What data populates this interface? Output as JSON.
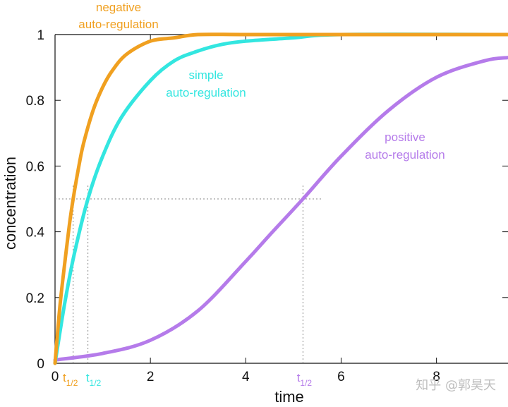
{
  "chart_data": {
    "type": "line",
    "xlabel": "time",
    "ylabel": "concentration",
    "xlim": [
      0,
      9.5
    ],
    "ylim": [
      0,
      1
    ],
    "x_ticks": [
      "0",
      "2",
      "4",
      "6",
      "8"
    ],
    "y_ticks": [
      "0",
      "0.2",
      "0.4",
      "0.6",
      "0.8",
      "1"
    ],
    "grid": false,
    "series": [
      {
        "name": "negative auto-regulation",
        "label_line1": "negative",
        "label_line2": "auto-regulation",
        "color": "#f0a020",
        "half_time": 0.38,
        "x": [
          0,
          0.1,
          0.2,
          0.3,
          0.38,
          0.5,
          0.6,
          0.8,
          1.0,
          1.2,
          1.5,
          2.0,
          2.5,
          3.0,
          4.0,
          6.0,
          9.5
        ],
        "y": [
          0,
          0.17,
          0.3,
          0.42,
          0.5,
          0.6,
          0.67,
          0.77,
          0.84,
          0.89,
          0.94,
          0.98,
          0.99,
          1.0,
          1.0,
          1.0,
          1.0
        ]
      },
      {
        "name": "simple auto-regulation",
        "label_line1": "simple",
        "label_line2": "auto-regulation",
        "color": "#33e6e0",
        "half_time": 0.69,
        "x": [
          0,
          0.2,
          0.4,
          0.69,
          1.0,
          1.4,
          2.0,
          2.5,
          3.0,
          3.5,
          4.0,
          5.0,
          6.0,
          9.5
        ],
        "y": [
          0,
          0.18,
          0.33,
          0.5,
          0.63,
          0.75,
          0.86,
          0.92,
          0.95,
          0.97,
          0.98,
          0.99,
          1.0,
          1.0
        ]
      },
      {
        "name": "positive auto-regulation",
        "label_line1": "positive",
        "label_line2": "auto-regulation",
        "color": "#b57bea",
        "half_time": 5.2,
        "x": [
          0,
          1,
          2,
          3,
          4,
          4.5,
          5.2,
          6,
          7,
          8,
          9,
          9.5
        ],
        "y": [
          0.01,
          0.03,
          0.07,
          0.16,
          0.31,
          0.39,
          0.5,
          0.63,
          0.77,
          0.87,
          0.92,
          0.93
        ]
      }
    ],
    "reference_line_y": 0.5,
    "half_time_label": "t",
    "half_time_subscript": "1/2",
    "annotations": [
      {
        "text": "negative auto-regulation"
      },
      {
        "text": "simple auto-regulation"
      },
      {
        "text": "positive auto-regulation"
      }
    ]
  },
  "watermark": "知乎 @郭昊天"
}
